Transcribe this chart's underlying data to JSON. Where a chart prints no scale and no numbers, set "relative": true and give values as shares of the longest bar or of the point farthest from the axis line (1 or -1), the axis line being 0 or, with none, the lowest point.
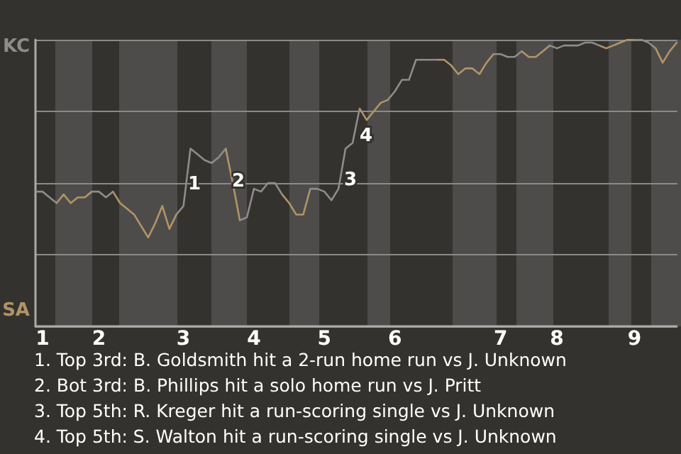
{
  "chart_data": {
    "type": "line",
    "relative": true,
    "grid": "y",
    "marker": "none",
    "line_style": "solid",
    "categories": [
      null,
      "1",
      null,
      null,
      null,
      null,
      null,
      null,
      null,
      "2",
      null,
      null,
      null,
      null,
      null,
      null,
      null,
      null,
      null,
      null,
      null,
      "3",
      null,
      null,
      null,
      null,
      null,
      null,
      null,
      null,
      null,
      "4",
      null,
      null,
      null,
      null,
      null,
      null,
      null,
      null,
      null,
      "5",
      null,
      null,
      null,
      null,
      null,
      null,
      null,
      null,
      null,
      "6",
      null,
      null,
      null,
      null,
      null,
      null,
      null,
      null,
      null,
      null,
      null,
      null,
      null,
      null,
      "7",
      null,
      null,
      null,
      null,
      null,
      null,
      null,
      "8",
      null,
      null,
      null,
      null,
      null,
      null,
      null,
      null,
      null,
      null,
      "9",
      null,
      null,
      null,
      null,
      null,
      null
    ],
    "values": [
      0.47,
      0.47,
      0.45,
      0.43,
      0.46,
      0.43,
      0.45,
      0.45,
      0.47,
      0.47,
      0.45,
      0.47,
      0.43,
      0.41,
      0.39,
      0.35,
      0.31,
      0.36,
      0.42,
      0.34,
      0.39,
      0.42,
      0.62,
      0.6,
      0.58,
      0.57,
      0.59,
      0.62,
      0.5,
      0.37,
      0.38,
      0.48,
      0.47,
      0.5,
      0.5,
      0.46,
      0.43,
      0.39,
      0.39,
      0.48,
      0.48,
      0.47,
      0.44,
      0.48,
      0.62,
      0.64,
      0.76,
      0.72,
      0.75,
      0.78,
      0.79,
      0.82,
      0.86,
      0.86,
      0.93,
      0.93,
      0.93,
      0.93,
      0.93,
      0.91,
      0.88,
      0.9,
      0.9,
      0.88,
      0.92,
      0.95,
      0.95,
      0.94,
      0.94,
      0.96,
      0.94,
      0.94,
      0.96,
      0.98,
      0.97,
      0.98,
      0.98,
      0.98,
      0.99,
      0.99,
      0.98,
      0.97,
      0.98,
      0.99,
      1.0,
      1.0,
      1.0,
      0.99,
      0.97,
      0.92,
      0.96,
      0.99
    ],
    "colors": [
      "#8c8c8c",
      "#8c8c8c",
      "#8c8c8c",
      "#b09466",
      "#b09466",
      "#b09466",
      "#b09466",
      "#b09466",
      "#8c8c8c",
      "#8c8c8c",
      "#8c8c8c",
      "#b09466",
      "#b09466",
      "#b09466",
      "#b09466",
      "#b09466",
      "#b09466",
      "#b09466",
      "#b09466",
      "#b09466",
      "#8c8c8c",
      "#8c8c8c",
      "#8c8c8c",
      "#8c8c8c",
      "#8c8c8c",
      "#8c8c8c",
      "#8c8c8c",
      "#b09466",
      "#b09466",
      "#8c8c8c",
      "#8c8c8c",
      "#8c8c8c",
      "#8c8c8c",
      "#8c8c8c",
      "#8c8c8c",
      "#b09466",
      "#b09466",
      "#b09466",
      "#b09466",
      "#8c8c8c",
      "#8c8c8c",
      "#8c8c8c",
      "#8c8c8c",
      "#8c8c8c",
      "#8c8c8c",
      "#8c8c8c",
      "#b09466",
      "#b09466",
      "#b09466",
      "#b09466",
      "#8c8c8c",
      "#8c8c8c",
      "#8c8c8c",
      "#8c8c8c",
      "#8c8c8c",
      "#8c8c8c",
      "#8c8c8c",
      "#b09466",
      "#b09466",
      "#b09466",
      "#b09466",
      "#b09466",
      "#b09466",
      "#b09466",
      "#b09466",
      "#8c8c8c",
      "#8c8c8c",
      "#8c8c8c",
      "#8c8c8c",
      "#b09466",
      "#b09466",
      "#b09466",
      "#b09466",
      "#8c8c8c",
      "#8c8c8c",
      "#8c8c8c",
      "#8c8c8c",
      "#8c8c8c",
      "#8c8c8c",
      "#8c8c8c",
      "#b09466",
      "#b09466",
      "#b09466",
      "#b09466",
      "#b09466",
      "#8c8c8c",
      "#8c8c8c",
      "#8c8c8c",
      "#b09466",
      "#b09466",
      "#b09466",
      "#b09466"
    ],
    "annotations": [
      "KC",
      "SA",
      "1",
      "2",
      "3",
      "4",
      "1. Top 3rd: B. Goldsmith hit a 2-run home run vs J. Unknown",
      "2. Bot 3rd: B. Phillips hit a solo home run vs J. Pritt",
      "3. Top 5th: R. Kreger hit a run-scoring single vs J. Unknown",
      "4. Top 5th: S. Walton hit a run-scoring single vs J. Unknown"
    ]
  }
}
